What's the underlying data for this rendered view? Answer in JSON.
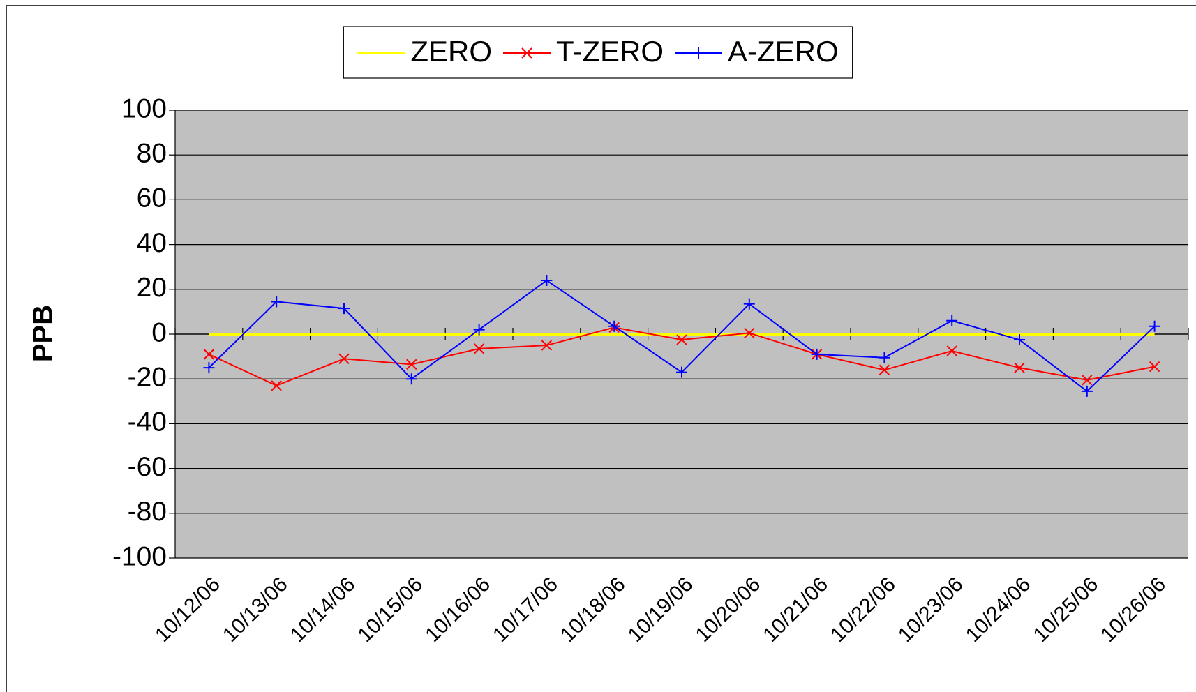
{
  "chart_data": {
    "type": "line",
    "y_label": "PPB",
    "categories": [
      "10/12/06",
      "10/13/06",
      "10/14/06",
      "10/15/06",
      "10/16/06",
      "10/17/06",
      "10/18/06",
      "10/19/06",
      "10/20/06",
      "10/21/06",
      "10/22/06",
      "10/23/06",
      "10/24/06",
      "10/25/06",
      "10/26/06"
    ],
    "series": [
      {
        "name": "ZERO",
        "color": "#ffff00",
        "marker": "none",
        "values": [
          0,
          0,
          0,
          0,
          0,
          0,
          0,
          0,
          0,
          0,
          0,
          0,
          0,
          0,
          0
        ]
      },
      {
        "name": "T-ZERO",
        "color": "#ff0000",
        "marker": "x",
        "values": [
          -9,
          -23,
          -11,
          -13.5,
          -6.5,
          -5,
          3,
          -2.5,
          0.5,
          -9,
          -16,
          -7.5,
          -15,
          -20.5,
          -14.5
        ]
      },
      {
        "name": "A-ZERO",
        "color": "#0000ff",
        "marker": "+",
        "values": [
          -15,
          14.5,
          11.5,
          -20,
          2,
          24,
          3.5,
          -17,
          13.5,
          -9,
          -10.5,
          6,
          -2.5,
          -25.5,
          3.5
        ]
      }
    ],
    "ylim": [
      -100,
      100
    ],
    "yticks": [
      -100,
      -80,
      -60,
      -40,
      -20,
      0,
      20,
      40,
      60,
      80,
      100
    ],
    "grid": true,
    "plot_background": "#c0c0c0",
    "legend": "top"
  }
}
